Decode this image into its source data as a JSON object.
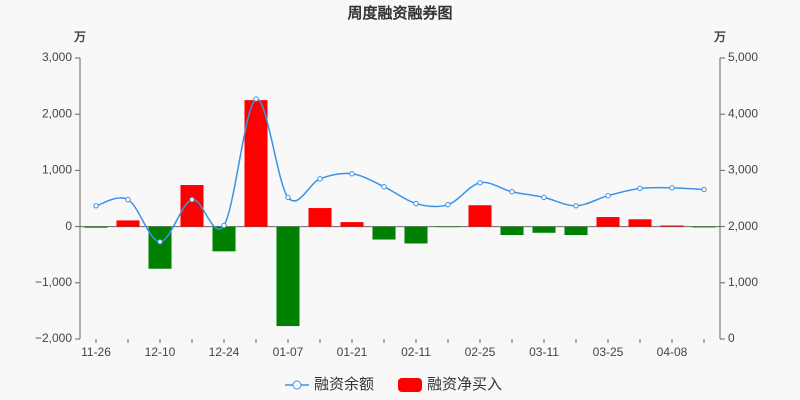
{
  "chart_data": {
    "type": "bar-line",
    "title": "周度融资融券图",
    "y_unit": "万",
    "y2_unit": "万",
    "categories": [
      "11-26",
      null,
      "12-10",
      null,
      "12-24",
      null,
      "01-07",
      null,
      "01-21",
      null,
      "02-11",
      null,
      "02-25",
      null,
      "03-11",
      null,
      "03-25",
      null,
      "04-08",
      null
    ],
    "series": [
      {
        "name": "融资余额",
        "type": "line",
        "axis": "y2",
        "color": "#3a93e6",
        "values": [
          2370,
          2480,
          1730,
          2480,
          2020,
          4270,
          2520,
          2850,
          2940,
          2710,
          2410,
          2390,
          2780,
          2620,
          2520,
          2370,
          2550,
          2680,
          2690,
          2660
        ]
      },
      {
        "name": "融资净买入",
        "type": "bar",
        "color": "#ff0000",
        "negative_color": "#008000",
        "values": [
          -20,
          110,
          -750,
          740,
          -440,
          2250,
          -1770,
          330,
          80,
          -230,
          -300,
          -10,
          380,
          -150,
          -110,
          -150,
          170,
          130,
          20,
          -15
        ]
      }
    ],
    "ylim": [
      -2000,
      3000
    ],
    "yticks": [
      {
        "value": -2000,
        "label": "−2,000"
      },
      {
        "value": -1000,
        "label": "−1,000"
      },
      0,
      {
        "value": 1000,
        "label": "1,000"
      },
      {
        "value": 2000,
        "label": "2,000"
      },
      {
        "value": 3000,
        "label": "3,000"
      }
    ],
    "y2lim": [
      0,
      5000
    ],
    "y2ticks": [
      0,
      {
        "value": 1000,
        "label": "1,000"
      },
      {
        "value": 2000,
        "label": "2,000"
      },
      {
        "value": 3000,
        "label": "3,000"
      },
      {
        "value": 4000,
        "label": "4,000"
      },
      {
        "value": 5000,
        "label": "5,000"
      }
    ],
    "legend": "bottom"
  }
}
